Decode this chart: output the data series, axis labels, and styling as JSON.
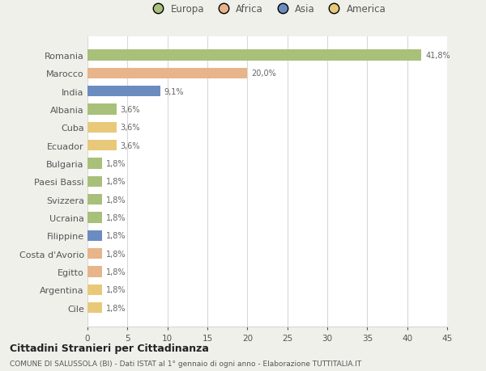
{
  "countries": [
    "Romania",
    "Marocco",
    "India",
    "Albania",
    "Cuba",
    "Ecuador",
    "Bulgaria",
    "Paesi Bassi",
    "Svizzera",
    "Ucraina",
    "Filippine",
    "Costa d'Avorio",
    "Egitto",
    "Argentina",
    "Cile"
  ],
  "values": [
    41.8,
    20.0,
    9.1,
    3.6,
    3.6,
    3.6,
    1.8,
    1.8,
    1.8,
    1.8,
    1.8,
    1.8,
    1.8,
    1.8,
    1.8
  ],
  "labels": [
    "41,8%",
    "20,0%",
    "9,1%",
    "3,6%",
    "3,6%",
    "3,6%",
    "1,8%",
    "1,8%",
    "1,8%",
    "1,8%",
    "1,8%",
    "1,8%",
    "1,8%",
    "1,8%",
    "1,8%"
  ],
  "colors": [
    "#a8c07a",
    "#e8b48a",
    "#6b8cbf",
    "#a8c07a",
    "#e8c97a",
    "#e8c97a",
    "#a8c07a",
    "#a8c07a",
    "#a8c07a",
    "#a8c07a",
    "#6b8cbf",
    "#e8b48a",
    "#e8b48a",
    "#e8c97a",
    "#e8c97a"
  ],
  "legend_labels": [
    "Europa",
    "Africa",
    "Asia",
    "America"
  ],
  "legend_colors": [
    "#a8c07a",
    "#e8b48a",
    "#6b8cbf",
    "#e8c97a"
  ],
  "title": "Cittadini Stranieri per Cittadinanza",
  "subtitle": "COMUNE DI SALUSSOLA (BI) - Dati ISTAT al 1° gennaio di ogni anno - Elaborazione TUTTITALIA.IT",
  "xlim": [
    0,
    45
  ],
  "xticks": [
    0,
    5,
    10,
    15,
    20,
    25,
    30,
    35,
    40,
    45
  ],
  "bg_color": "#f0f0eb",
  "plot_bg_color": "#ffffff",
  "grid_color": "#d8d8d8",
  "label_color": "#666666",
  "text_color": "#555555"
}
